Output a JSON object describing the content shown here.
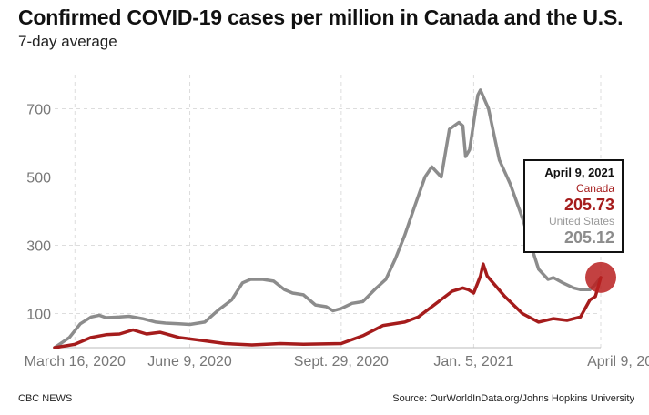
{
  "title": "Confirmed COVID-19 cases per million in Canada and the U.S.",
  "subtitle": "7-day average",
  "footer": {
    "left": "CBC NEWS",
    "right": "Source: OurWorldInData.org/Johns Hopkins University"
  },
  "tooltip": {
    "date": "April 9, 2021",
    "canada_label": "Canada",
    "canada_value": "205.73",
    "us_label": "United States",
    "us_value": "205.12"
  },
  "colors": {
    "canada": "#a51c1c",
    "us": "#8c8c8c",
    "grid": "#dddddd",
    "highlight": "#b82020"
  },
  "chart_data": {
    "type": "line",
    "title": "Confirmed COVID-19 cases per million in Canada and the U.S.",
    "subtitle": "7-day average",
    "xlabel": "",
    "ylabel": "",
    "x_domain": [
      "2020-03-01",
      "2021-04-09"
    ],
    "ylim": [
      0,
      800
    ],
    "y_ticks": [
      100,
      300,
      500,
      700
    ],
    "x_ticks": [
      {
        "date": "2020-03-16",
        "label": "March 16, 2020"
      },
      {
        "date": "2020-06-09",
        "label": "June 9, 2020"
      },
      {
        "date": "2020-09-29",
        "label": "Sept. 29, 2020"
      },
      {
        "date": "2021-01-05",
        "label": "Jan. 5, 2021"
      },
      {
        "date": "2021-04-09",
        "label": "April 9, 2021"
      }
    ],
    "grid": true,
    "highlight_date": "2021-04-09",
    "series": [
      {
        "name": "United States",
        "points": [
          [
            "2020-03-01",
            0
          ],
          [
            "2020-03-12",
            30
          ],
          [
            "2020-03-20",
            70
          ],
          [
            "2020-03-28",
            90
          ],
          [
            "2020-04-03",
            95
          ],
          [
            "2020-04-08",
            88
          ],
          [
            "2020-04-18",
            90
          ],
          [
            "2020-04-25",
            92
          ],
          [
            "2020-05-05",
            85
          ],
          [
            "2020-05-15",
            75
          ],
          [
            "2020-05-22",
            72
          ],
          [
            "2020-06-01",
            70
          ],
          [
            "2020-06-09",
            68
          ],
          [
            "2020-06-20",
            75
          ],
          [
            "2020-06-30",
            110
          ],
          [
            "2020-07-10",
            140
          ],
          [
            "2020-07-18",
            190
          ],
          [
            "2020-07-24",
            200
          ],
          [
            "2020-08-02",
            200
          ],
          [
            "2020-08-10",
            195
          ],
          [
            "2020-08-18",
            170
          ],
          [
            "2020-08-24",
            160
          ],
          [
            "2020-09-01",
            155
          ],
          [
            "2020-09-10",
            125
          ],
          [
            "2020-09-18",
            120
          ],
          [
            "2020-09-23",
            108
          ],
          [
            "2020-09-29",
            115
          ],
          [
            "2020-10-07",
            130
          ],
          [
            "2020-10-15",
            135
          ],
          [
            "2020-10-25",
            175
          ],
          [
            "2020-11-01",
            200
          ],
          [
            "2020-11-08",
            260
          ],
          [
            "2020-11-15",
            330
          ],
          [
            "2020-11-22",
            410
          ],
          [
            "2020-11-30",
            500
          ],
          [
            "2020-12-05",
            530
          ],
          [
            "2020-12-12",
            500
          ],
          [
            "2020-12-18",
            640
          ],
          [
            "2020-12-25",
            660
          ],
          [
            "2020-12-28",
            650
          ],
          [
            "2020-12-30",
            560
          ],
          [
            "2021-01-02",
            580
          ],
          [
            "2021-01-08",
            740
          ],
          [
            "2021-01-10",
            755
          ],
          [
            "2021-01-16",
            700
          ],
          [
            "2021-01-24",
            550
          ],
          [
            "2021-02-01",
            480
          ],
          [
            "2021-02-10",
            380
          ],
          [
            "2021-02-18",
            280
          ],
          [
            "2021-02-22",
            230
          ],
          [
            "2021-03-01",
            200
          ],
          [
            "2021-03-05",
            205
          ],
          [
            "2021-03-12",
            190
          ],
          [
            "2021-03-20",
            175
          ],
          [
            "2021-03-25",
            170
          ],
          [
            "2021-04-01",
            170
          ],
          [
            "2021-04-05",
            185
          ],
          [
            "2021-04-09",
            205.12
          ]
        ]
      },
      {
        "name": "Canada",
        "points": [
          [
            "2020-03-01",
            0
          ],
          [
            "2020-03-16",
            10
          ],
          [
            "2020-03-28",
            30
          ],
          [
            "2020-04-08",
            38
          ],
          [
            "2020-04-18",
            40
          ],
          [
            "2020-04-28",
            52
          ],
          [
            "2020-05-08",
            40
          ],
          [
            "2020-05-18",
            45
          ],
          [
            "2020-06-01",
            30
          ],
          [
            "2020-06-20",
            20
          ],
          [
            "2020-07-05",
            12
          ],
          [
            "2020-07-25",
            8
          ],
          [
            "2020-08-15",
            12
          ],
          [
            "2020-09-01",
            10
          ],
          [
            "2020-09-29",
            12
          ],
          [
            "2020-10-15",
            35
          ],
          [
            "2020-10-30",
            65
          ],
          [
            "2020-11-15",
            75
          ],
          [
            "2020-11-25",
            90
          ],
          [
            "2020-12-05",
            120
          ],
          [
            "2020-12-20",
            165
          ],
          [
            "2020-12-28",
            175
          ],
          [
            "2021-01-01",
            170
          ],
          [
            "2021-01-05",
            160
          ],
          [
            "2021-01-10",
            210
          ],
          [
            "2021-01-12",
            245
          ],
          [
            "2021-01-15",
            210
          ],
          [
            "2021-01-28",
            150
          ],
          [
            "2021-02-10",
            100
          ],
          [
            "2021-02-22",
            75
          ],
          [
            "2021-03-05",
            85
          ],
          [
            "2021-03-15",
            80
          ],
          [
            "2021-03-25",
            90
          ],
          [
            "2021-04-01",
            140
          ],
          [
            "2021-04-05",
            150
          ],
          [
            "2021-04-09",
            205.73
          ]
        ]
      }
    ]
  }
}
